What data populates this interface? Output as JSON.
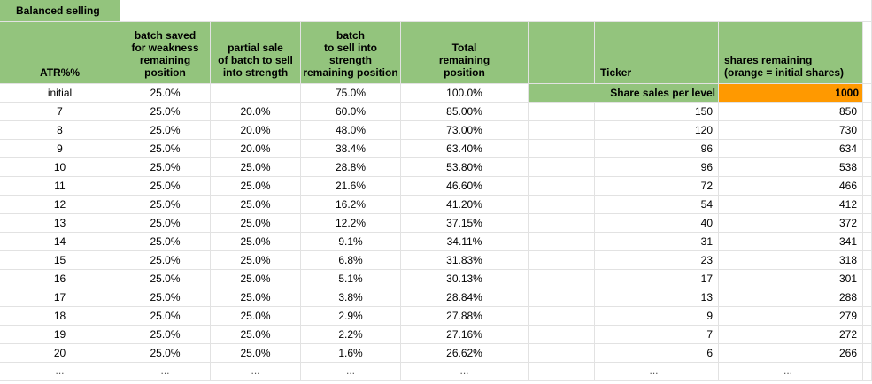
{
  "title": "Balanced selling",
  "headers": {
    "atr": "ATR%%",
    "saved": "batch saved\nfor weakness\nremaining\nposition",
    "partial": "partial sale\nof batch to sell\ninto strength",
    "batch": "batch\nto sell into\nstrength\nremaining position",
    "total": "Total\nremaining\nposition",
    "ticker": "Ticker",
    "shares": "shares remaining\n(orange = initial shares)"
  },
  "share_sales_label": "Share sales per level",
  "initial_shares": "1000",
  "rows": [
    [
      "initial",
      "25.0%",
      "",
      "75.0%",
      "100.0%",
      "",
      ""
    ],
    [
      "7",
      "25.0%",
      "20.0%",
      "60.0%",
      "85.00%",
      "150",
      "850"
    ],
    [
      "8",
      "25.0%",
      "20.0%",
      "48.0%",
      "73.00%",
      "120",
      "730"
    ],
    [
      "9",
      "25.0%",
      "20.0%",
      "38.4%",
      "63.40%",
      "96",
      "634"
    ],
    [
      "10",
      "25.0%",
      "25.0%",
      "28.8%",
      "53.80%",
      "96",
      "538"
    ],
    [
      "11",
      "25.0%",
      "25.0%",
      "21.6%",
      "46.60%",
      "72",
      "466"
    ],
    [
      "12",
      "25.0%",
      "25.0%",
      "16.2%",
      "41.20%",
      "54",
      "412"
    ],
    [
      "13",
      "25.0%",
      "25.0%",
      "12.2%",
      "37.15%",
      "40",
      "372"
    ],
    [
      "14",
      "25.0%",
      "25.0%",
      "9.1%",
      "34.11%",
      "31",
      "341"
    ],
    [
      "15",
      "25.0%",
      "25.0%",
      "6.8%",
      "31.83%",
      "23",
      "318"
    ],
    [
      "16",
      "25.0%",
      "25.0%",
      "5.1%",
      "30.13%",
      "17",
      "301"
    ],
    [
      "17",
      "25.0%",
      "25.0%",
      "3.8%",
      "28.84%",
      "13",
      "288"
    ],
    [
      "18",
      "25.0%",
      "25.0%",
      "2.9%",
      "27.88%",
      "9",
      "279"
    ],
    [
      "19",
      "25.0%",
      "25.0%",
      "2.2%",
      "27.16%",
      "7",
      "272"
    ],
    [
      "20",
      "25.0%",
      "25.0%",
      "1.6%",
      "26.62%",
      "6",
      "266"
    ],
    [
      "...",
      "...",
      "...",
      "...",
      "...",
      "...",
      "..."
    ]
  ]
}
